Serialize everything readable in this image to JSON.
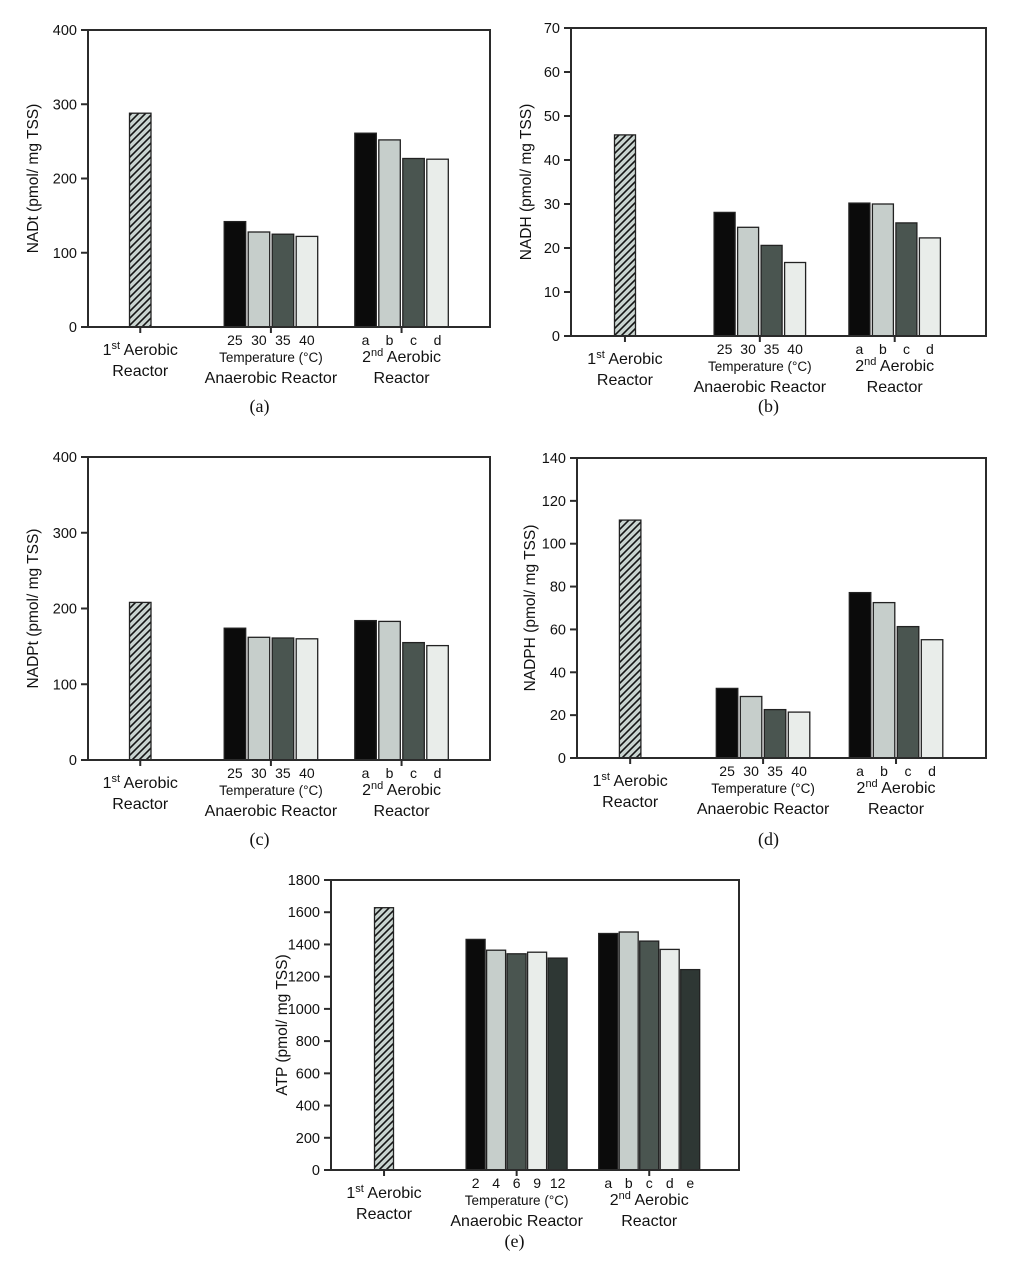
{
  "page": {
    "background": "#ffffff"
  },
  "palette": {
    "black": "#0b0b0b",
    "light_gray": "#c6cecb",
    "dark_gray": "#4a5550",
    "very_light_gray": "#e9edea",
    "charcoal": "#2e3734",
    "hatch_bg": "#c9d4d0",
    "hatch_line": "#151515",
    "axis": "#2b2b2b",
    "bar_stroke": "#222222",
    "text": "#111111"
  },
  "chart_data": [
    {
      "id": "a",
      "type": "bar",
      "caption": "(a)",
      "ylabel": "NADt (pmol/ mg TSS)",
      "ylim": [
        0,
        400
      ],
      "ytick_step": 100,
      "grid": false,
      "groups": [
        {
          "name": "first-aerobic-reactor",
          "label": [
            [
              "1",
              {
                "sup": "st"
              },
              " Aerobic"
            ],
            [
              "Reactor"
            ]
          ],
          "bars": [
            {
              "value": 288,
              "style": "hatch"
            }
          ]
        },
        {
          "name": "anaerobic-reactor",
          "tick_labels": [
            "25",
            "30",
            "35",
            "40"
          ],
          "sub_label": "Temperature (°C)",
          "label": [
            [
              "Anaerobic Reactor"
            ]
          ],
          "bars": [
            {
              "value": 142,
              "style": "black"
            },
            {
              "value": 128,
              "style": "light_gray"
            },
            {
              "value": 125,
              "style": "dark_gray"
            },
            {
              "value": 122,
              "style": "very_light_gray"
            }
          ]
        },
        {
          "name": "second-aerobic-reactor",
          "tick_labels": [
            "a",
            "b",
            "c",
            "d"
          ],
          "label": [
            [
              "2",
              {
                "sup": "nd"
              },
              " Aerobic"
            ],
            [
              "Reactor"
            ]
          ],
          "bars": [
            {
              "value": 261,
              "style": "black"
            },
            {
              "value": 252,
              "style": "light_gray"
            },
            {
              "value": 227,
              "style": "dark_gray"
            },
            {
              "value": 226,
              "style": "very_light_gray"
            }
          ]
        }
      ]
    },
    {
      "id": "b",
      "type": "bar",
      "caption": "(b)",
      "ylabel": "NADH (pmol/ mg TSS)",
      "ylim": [
        0,
        70
      ],
      "ytick_step": 10,
      "grid": false,
      "groups": [
        {
          "name": "first-aerobic-reactor",
          "label": [
            [
              "1",
              {
                "sup": "st"
              },
              " Aerobic"
            ],
            [
              "Reactor"
            ]
          ],
          "bars": [
            {
              "value": 45.7,
              "style": "hatch"
            }
          ]
        },
        {
          "name": "anaerobic-reactor",
          "tick_labels": [
            "25",
            "30",
            "35",
            "40"
          ],
          "sub_label": "Temperature (°C)",
          "label": [
            [
              "Anaerobic Reactor"
            ]
          ],
          "bars": [
            {
              "value": 28.1,
              "style": "black"
            },
            {
              "value": 24.7,
              "style": "light_gray"
            },
            {
              "value": 20.6,
              "style": "dark_gray"
            },
            {
              "value": 16.7,
              "style": "very_light_gray"
            }
          ]
        },
        {
          "name": "second-aerobic-reactor",
          "tick_labels": [
            "a",
            "b",
            "c",
            "d"
          ],
          "label": [
            [
              "2",
              {
                "sup": "nd"
              },
              " Aerobic"
            ],
            [
              "Reactor"
            ]
          ],
          "bars": [
            {
              "value": 30.2,
              "style": "black"
            },
            {
              "value": 30.0,
              "style": "light_gray"
            },
            {
              "value": 25.7,
              "style": "dark_gray"
            },
            {
              "value": 22.3,
              "style": "very_light_gray"
            }
          ]
        }
      ]
    },
    {
      "id": "c",
      "type": "bar",
      "caption": "(c)",
      "ylabel": "NADPt (pmol/ mg TSS)",
      "ylim": [
        0,
        400
      ],
      "ytick_step": 100,
      "grid": false,
      "groups": [
        {
          "name": "first-aerobic-reactor",
          "label": [
            [
              "1",
              {
                "sup": "st"
              },
              " Aerobic"
            ],
            [
              "Reactor"
            ]
          ],
          "bars": [
            {
              "value": 208,
              "style": "hatch"
            }
          ]
        },
        {
          "name": "anaerobic-reactor",
          "tick_labels": [
            "25",
            "30",
            "35",
            "40"
          ],
          "sub_label": "Temperature (°C)",
          "label": [
            [
              "Anaerobic Reactor"
            ]
          ],
          "bars": [
            {
              "value": 174,
              "style": "black"
            },
            {
              "value": 162,
              "style": "light_gray"
            },
            {
              "value": 161,
              "style": "dark_gray"
            },
            {
              "value": 160,
              "style": "very_light_gray"
            }
          ]
        },
        {
          "name": "second-aerobic-reactor",
          "tick_labels": [
            "a",
            "b",
            "c",
            "d"
          ],
          "label": [
            [
              "2",
              {
                "sup": "nd"
              },
              " Aerobic"
            ],
            [
              "Reactor"
            ]
          ],
          "bars": [
            {
              "value": 184,
              "style": "black"
            },
            {
              "value": 183,
              "style": "light_gray"
            },
            {
              "value": 155,
              "style": "dark_gray"
            },
            {
              "value": 151,
              "style": "very_light_gray"
            }
          ]
        }
      ]
    },
    {
      "id": "d",
      "type": "bar",
      "caption": "(d)",
      "ylabel": "NADPH (pmol/ mg TSS)",
      "ylim": [
        0,
        140
      ],
      "ytick_step": 20,
      "grid": false,
      "groups": [
        {
          "name": "first-aerobic-reactor",
          "label": [
            [
              "1",
              {
                "sup": "st"
              },
              " Aerobic"
            ],
            [
              "Reactor"
            ]
          ],
          "bars": [
            {
              "value": 111,
              "style": "hatch"
            }
          ]
        },
        {
          "name": "anaerobic-reactor",
          "tick_labels": [
            "25",
            "30",
            "35",
            "40"
          ],
          "sub_label": "Temperature (°C)",
          "label": [
            [
              "Anaerobic Reactor"
            ]
          ],
          "bars": [
            {
              "value": 32.5,
              "style": "black"
            },
            {
              "value": 28.7,
              "style": "light_gray"
            },
            {
              "value": 22.6,
              "style": "dark_gray"
            },
            {
              "value": 21.4,
              "style": "very_light_gray"
            }
          ]
        },
        {
          "name": "second-aerobic-reactor",
          "tick_labels": [
            "a",
            "b",
            "c",
            "d"
          ],
          "label": [
            [
              "2",
              {
                "sup": "nd"
              },
              " Aerobic"
            ],
            [
              "Reactor"
            ]
          ],
          "bars": [
            {
              "value": 77.2,
              "style": "black"
            },
            {
              "value": 72.5,
              "style": "light_gray"
            },
            {
              "value": 61.3,
              "style": "dark_gray"
            },
            {
              "value": 55.2,
              "style": "very_light_gray"
            }
          ]
        }
      ]
    },
    {
      "id": "e",
      "type": "bar",
      "caption": "(e)",
      "ylabel": "ATP (pmol/ mg TSS)",
      "ylim": [
        0,
        1800
      ],
      "ytick_step": 200,
      "grid": false,
      "groups": [
        {
          "name": "first-aerobic-reactor",
          "label": [
            [
              "1",
              {
                "sup": "st"
              },
              " Aerobic"
            ],
            [
              "Reactor"
            ]
          ],
          "bars": [
            {
              "value": 1628,
              "style": "hatch"
            }
          ]
        },
        {
          "name": "anaerobic-reactor",
          "tick_labels": [
            "2",
            "4",
            "6",
            "9",
            "12"
          ],
          "sub_label": "Temperature (°C)",
          "label": [
            [
              "Anaerobic Reactor"
            ]
          ],
          "bars": [
            {
              "value": 1431,
              "style": "black"
            },
            {
              "value": 1364,
              "style": "light_gray"
            },
            {
              "value": 1342,
              "style": "dark_gray"
            },
            {
              "value": 1352,
              "style": "very_light_gray"
            },
            {
              "value": 1315,
              "style": "charcoal"
            }
          ]
        },
        {
          "name": "second-aerobic-reactor",
          "tick_labels": [
            "a",
            "b",
            "c",
            "d",
            "e"
          ],
          "label": [
            [
              "2",
              {
                "sup": "nd"
              },
              " Aerobic"
            ],
            [
              "Reactor"
            ]
          ],
          "bars": [
            {
              "value": 1468,
              "style": "black"
            },
            {
              "value": 1477,
              "style": "light_gray"
            },
            {
              "value": 1421,
              "style": "dark_gray"
            },
            {
              "value": 1369,
              "style": "very_light_gray"
            },
            {
              "value": 1244,
              "style": "charcoal"
            }
          ]
        }
      ]
    }
  ]
}
